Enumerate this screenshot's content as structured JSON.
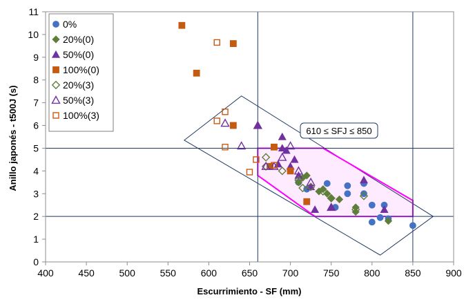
{
  "chart_data": {
    "type": "scatter",
    "xlabel": "Escurrimiento - SF (mm)",
    "ylabel": "Anillo japonés - t500J (s)",
    "xlim": [
      400,
      900
    ],
    "ylim": [
      0,
      11
    ],
    "x_ticks": [
      400,
      450,
      500,
      550,
      600,
      650,
      700,
      750,
      800,
      850,
      900
    ],
    "y_ticks": [
      0,
      1,
      2,
      3,
      4,
      5,
      6,
      7,
      8,
      9,
      10,
      11
    ],
    "grid": false,
    "legend_position": "top-left",
    "reference_lines": {
      "x": [
        660,
        850
      ],
      "y": [
        2,
        5
      ]
    },
    "annotation": "610 ≤ SFJ ≤ 850",
    "regions": [
      {
        "name": "outer-region",
        "points": [
          [
            570,
            5.35
          ],
          [
            640,
            7.3
          ],
          [
            875,
            2.0
          ],
          [
            810,
            0.3
          ]
        ],
        "color": "#1f3864"
      },
      {
        "name": "target-region",
        "points": [
          [
            660,
            5.0
          ],
          [
            740,
            5.0
          ],
          [
            850,
            2.7
          ],
          [
            850,
            2.0
          ],
          [
            730,
            2.0
          ],
          [
            660,
            3.8
          ]
        ],
        "color": "#ff00ff"
      }
    ],
    "series": [
      {
        "name": "0%",
        "marker": "circle",
        "filled": true,
        "color": "#4472c4",
        "x": [
          850,
          820,
          815,
          810,
          800,
          800,
          790,
          790,
          770,
          770,
          755,
          745,
          720,
          710
        ],
        "y": [
          1.6,
          1.9,
          2.5,
          1.95,
          1.75,
          2.5,
          3.45,
          3.0,
          3.35,
          3.0,
          2.4,
          3.45,
          3.2,
          3.5
        ]
      },
      {
        "name": "20%(0)",
        "marker": "diamond",
        "filled": true,
        "color": "#5e7e3a",
        "x": [
          820,
          780,
          780,
          760,
          750,
          745,
          740,
          735,
          720,
          715,
          710,
          700
        ],
        "y": [
          1.8,
          2.4,
          2.2,
          2.75,
          2.8,
          3.0,
          3.2,
          3.1,
          3.8,
          3.7,
          3.5,
          4.1
        ]
      },
      {
        "name": "50%(0)",
        "marker": "triangle",
        "filled": true,
        "color": "#7030a0",
        "x": [
          815,
          790,
          750,
          730,
          725,
          710,
          705,
          700,
          695,
          690,
          690,
          685,
          660
        ],
        "y": [
          2.3,
          3.6,
          2.4,
          2.3,
          3.3,
          3.8,
          4.5,
          4.2,
          4.9,
          5.0,
          5.5,
          4.3,
          6.0
        ]
      },
      {
        "name": "100%(0)",
        "marker": "square",
        "filled": true,
        "color": "#c55a11",
        "x": [
          567,
          585,
          630,
          630,
          680,
          675,
          700,
          720
        ],
        "y": [
          10.4,
          8.3,
          9.6,
          6.0,
          5.05,
          4.2,
          4.0,
          2.65
        ]
      },
      {
        "name": "20%(3)",
        "marker": "diamond",
        "filled": false,
        "color": "#5e7e3a",
        "x": [
          790,
          780,
          750,
          740,
          725,
          715,
          710,
          690,
          670,
          670
        ],
        "y": [
          2.9,
          2.3,
          2.8,
          3.1,
          3.3,
          3.25,
          3.6,
          4.0,
          4.6,
          4.2
        ]
      },
      {
        "name": "50%(3)",
        "marker": "triangle",
        "filled": false,
        "color": "#7030a0",
        "x": [
          750,
          725,
          710,
          700,
          690,
          680,
          670,
          660,
          640,
          620
        ],
        "y": [
          2.4,
          3.5,
          4.0,
          5.1,
          4.6,
          4.2,
          4.2,
          6.0,
          5.1,
          6.1
        ]
      },
      {
        "name": "100%(3)",
        "marker": "square",
        "filled": false,
        "color": "#c55a11",
        "x": [
          610,
          620,
          610,
          620,
          650,
          658,
          680,
          700
        ],
        "y": [
          9.65,
          6.6,
          6.2,
          5.05,
          3.95,
          4.5,
          4.25,
          4.0
        ]
      }
    ]
  }
}
